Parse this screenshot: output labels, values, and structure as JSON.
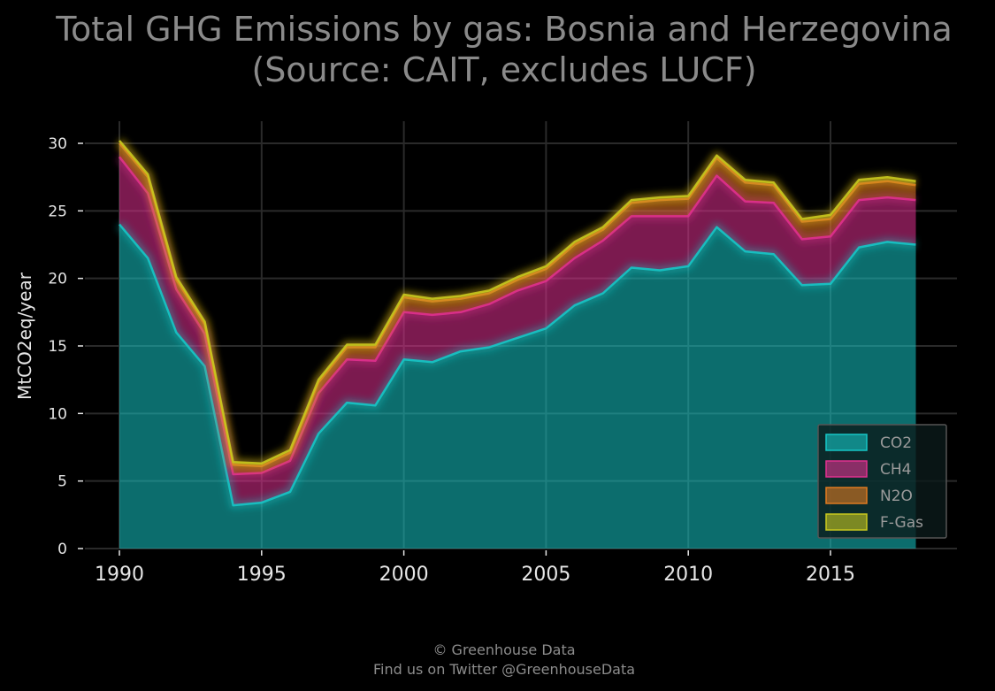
{
  "title_line1": "Total GHG Emissions by gas: Bosnia and Herzegovina",
  "title_line2": "(Source: CAIT, excludes LUCF)",
  "footer_line1": "© Greenhouse Data",
  "footer_line2": "Find us on Twitter @GreenhouseData",
  "chart_data": {
    "type": "area",
    "stacked": true,
    "ylabel": "MtCO2eq/year",
    "xlabel": "",
    "xlim": [
      1990,
      2018
    ],
    "ylim": [
      0,
      30
    ],
    "x_ticks": [
      1990,
      1995,
      2000,
      2005,
      2010,
      2015
    ],
    "y_ticks": [
      0,
      5,
      10,
      15,
      20,
      25,
      30
    ],
    "grid": true,
    "legend_position": "lower-right",
    "x": [
      1990,
      1991,
      1992,
      1993,
      1994,
      1995,
      1996,
      1997,
      1998,
      1999,
      2000,
      2001,
      2002,
      2003,
      2004,
      2005,
      2006,
      2007,
      2008,
      2009,
      2010,
      2011,
      2012,
      2013,
      2014,
      2015,
      2016,
      2017,
      2018
    ],
    "series": [
      {
        "name": "CO2",
        "color": "#16c6c6",
        "values": [
          24.0,
          21.5,
          16.0,
          13.5,
          3.2,
          3.4,
          4.2,
          8.5,
          10.8,
          10.6,
          14.0,
          13.8,
          14.6,
          14.9,
          15.6,
          16.3,
          18.0,
          18.9,
          20.8,
          20.6,
          20.9,
          23.8,
          22.0,
          21.8,
          19.5,
          19.6,
          22.3,
          22.7,
          22.5
        ]
      },
      {
        "name": "CH4",
        "color": "#e0308f",
        "values": [
          5.0,
          4.8,
          3.2,
          2.4,
          2.3,
          2.2,
          2.3,
          3.0,
          3.2,
          3.3,
          3.5,
          3.5,
          2.9,
          3.2,
          3.5,
          3.5,
          3.5,
          3.9,
          3.8,
          4.0,
          3.7,
          3.8,
          3.7,
          3.8,
          3.4,
          3.5,
          3.5,
          3.3,
          3.3
        ]
      },
      {
        "name": "N2O",
        "color": "#e07a20",
        "values": [
          1.0,
          1.2,
          0.7,
          0.7,
          0.7,
          0.5,
          0.6,
          0.8,
          0.9,
          1.0,
          1.1,
          1.0,
          1.0,
          0.8,
          0.8,
          0.9,
          1.0,
          0.8,
          1.0,
          1.2,
          1.3,
          1.3,
          1.4,
          1.3,
          1.3,
          1.3,
          1.2,
          1.2,
          1.1
        ]
      },
      {
        "name": "F-Gas",
        "color": "#c8c81e",
        "values": [
          0.2,
          0.2,
          0.2,
          0.2,
          0.2,
          0.2,
          0.2,
          0.2,
          0.2,
          0.2,
          0.2,
          0.2,
          0.2,
          0.2,
          0.2,
          0.2,
          0.2,
          0.2,
          0.2,
          0.2,
          0.2,
          0.2,
          0.2,
          0.2,
          0.2,
          0.3,
          0.3,
          0.3,
          0.3
        ]
      }
    ]
  }
}
